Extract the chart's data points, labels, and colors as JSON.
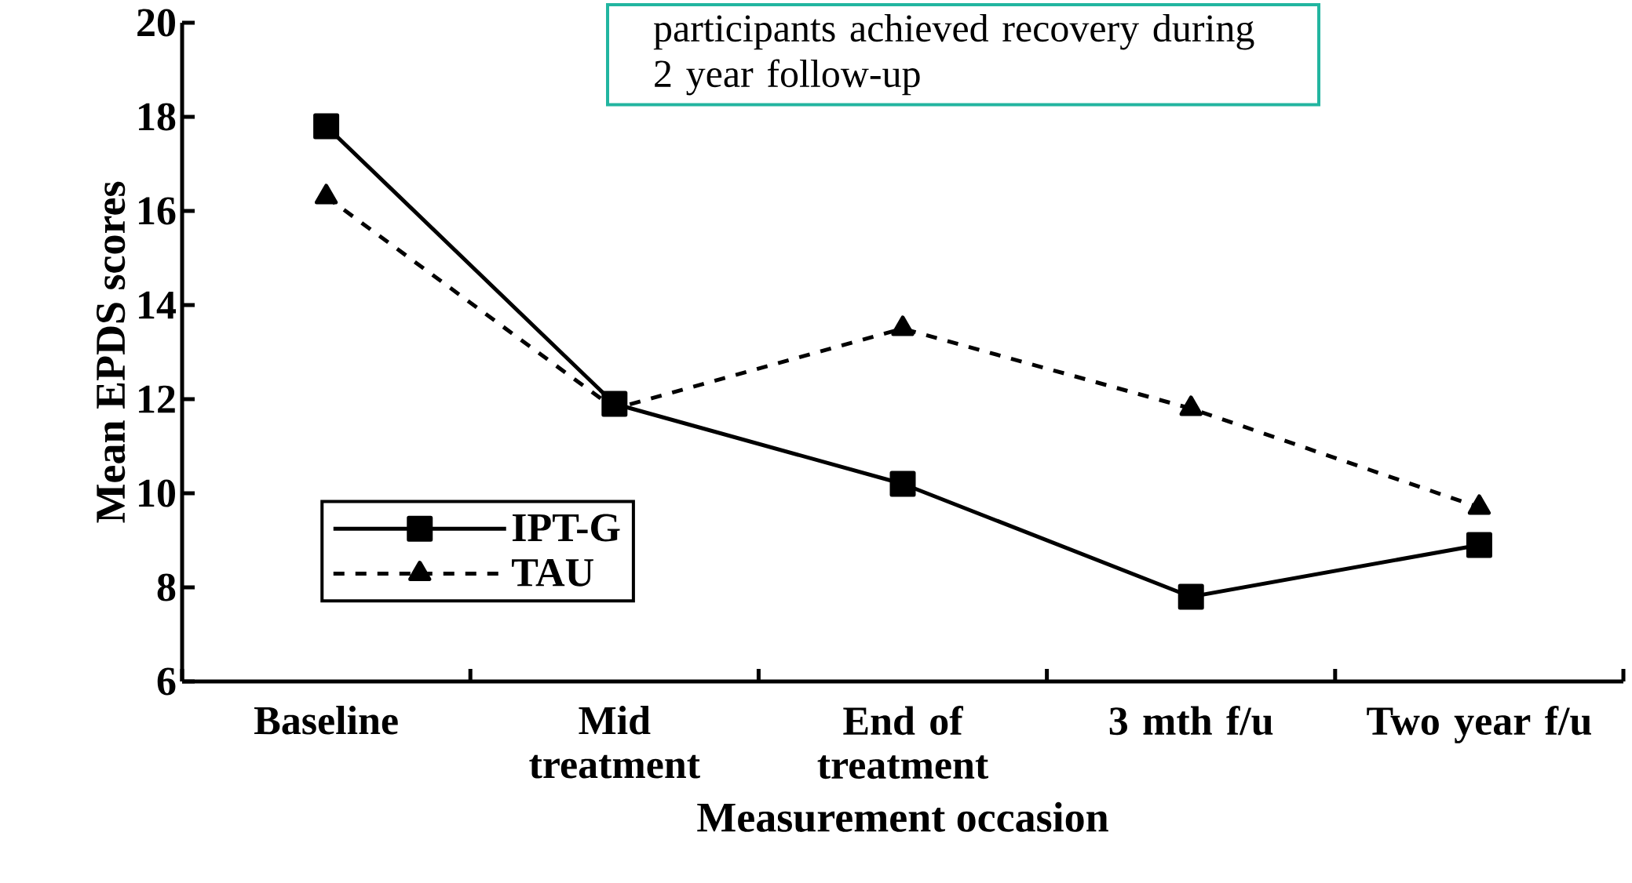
{
  "chart_data": {
    "type": "line",
    "xlabel": "Measurement occasion",
    "ylabel": "Mean EPDS scores",
    "categories": [
      "Baseline",
      "Mid treatment",
      "End of treatment",
      "3 mth f/u",
      "Two year f/u"
    ],
    "series": [
      {
        "name": "IPT-G",
        "color": "#000000",
        "marker": "square",
        "line_style": "solid",
        "values": [
          17.8,
          11.9,
          10.2,
          7.8,
          8.9
        ]
      },
      {
        "name": "TAU",
        "color": "#000000",
        "marker": "triangle",
        "line_style": "dashed",
        "values": [
          16.3,
          11.8,
          13.5,
          11.8,
          9.7
        ]
      }
    ],
    "ylim": [
      6,
      20
    ],
    "yticks": [
      6,
      8,
      10,
      12,
      14,
      16,
      18,
      20
    ],
    "grid": false,
    "legend": "bottom left",
    "annotations": [
      "participants achieved recovery during 2 year follow-up"
    ]
  }
}
